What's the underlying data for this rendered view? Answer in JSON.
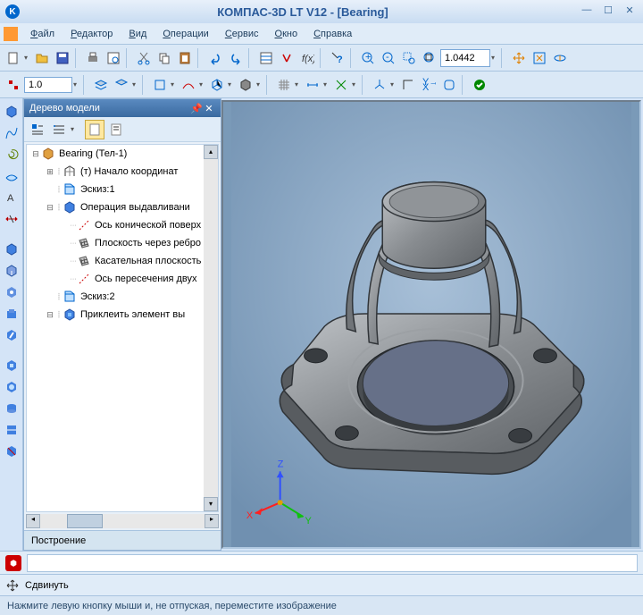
{
  "app": {
    "title": "КОМПАС-3D LT V12 - [Bearing]",
    "logo_letter": "K"
  },
  "menu": {
    "items": [
      "Файл",
      "Редактор",
      "Вид",
      "Операции",
      "Сервис",
      "Окно",
      "Справка"
    ]
  },
  "toolbar1": {
    "zoom_value": "1.0442"
  },
  "toolbar2": {
    "width_value": "1.0"
  },
  "panel": {
    "title": "Дерево модели",
    "tab": "Построение"
  },
  "tree": {
    "root": "Bearing (Тел-1)",
    "items": [
      {
        "indent": 1,
        "icon": "origin",
        "label": "(т) Начало координат",
        "exp": "+"
      },
      {
        "indent": 1,
        "icon": "sketch",
        "label": "Эскиз:1",
        "exp": ""
      },
      {
        "indent": 1,
        "icon": "extrude",
        "label": "Операция выдавливани",
        "exp": "-"
      },
      {
        "indent": 2,
        "icon": "axis",
        "label": "Ось конической поверх",
        "exp": ""
      },
      {
        "indent": 2,
        "icon": "plane",
        "label": "Плоскость через ребро",
        "exp": ""
      },
      {
        "indent": 2,
        "icon": "plane",
        "label": "Касательная плоскость",
        "exp": ""
      },
      {
        "indent": 2,
        "icon": "axis",
        "label": "Ось пересечения двух",
        "exp": ""
      },
      {
        "indent": 1,
        "icon": "sketch",
        "label": "Эскиз:2",
        "exp": ""
      },
      {
        "indent": 1,
        "icon": "glue",
        "label": "Приклеить элемент вы",
        "exp": "-"
      }
    ]
  },
  "bottom": {
    "move_label": "Сдвинуть"
  },
  "status": {
    "text": "Нажмите левую кнопку мыши и, не отпуская, переместите изображение"
  },
  "axes": {
    "x": "X",
    "y": "Y",
    "z": "Z"
  },
  "colors": {
    "model_fill": "#8a8e92",
    "model_dark": "#5a5e62",
    "model_light": "#b8bcc0",
    "viewport_bg": "#8aa4be"
  }
}
